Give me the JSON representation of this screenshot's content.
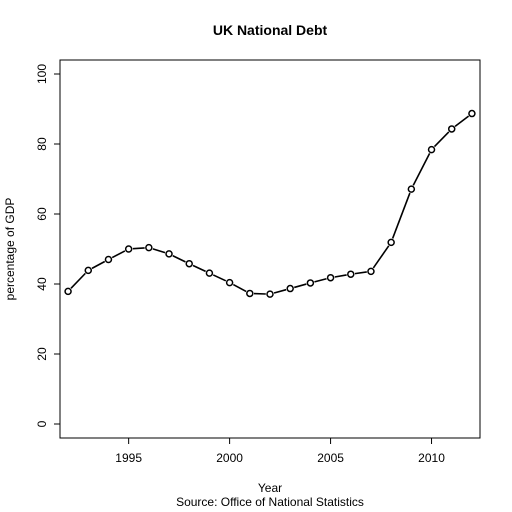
{
  "chart_data": {
    "type": "line",
    "title": "UK National Debt",
    "xlabel": "Year",
    "ylabel": "percentage of GDP",
    "caption": "Source: Office of National Statistics",
    "xlim": [
      1991.6,
      2012.4
    ],
    "ylim": [
      -4,
      104
    ],
    "x_ticks": [
      1995,
      2000,
      2005,
      2010
    ],
    "y_ticks": [
      0,
      20,
      40,
      60,
      80,
      100
    ],
    "grid": false,
    "legend": "none",
    "line_color": "#000000",
    "series": [
      {
        "x": [
          1992,
          1993,
          1994,
          1995,
          1996,
          1997,
          1998,
          1999,
          2000,
          2001,
          2002,
          2003,
          2004,
          2005,
          2006,
          2007,
          2008,
          2009,
          2010,
          2011,
          2012
        ],
        "y": [
          37.9,
          43.9,
          47.0,
          50.0,
          50.4,
          48.6,
          45.8,
          43.1,
          40.4,
          37.3,
          37.1,
          38.7,
          40.3,
          41.8,
          42.8,
          43.6,
          51.9,
          67.1,
          78.4,
          84.3,
          88.7
        ]
      }
    ]
  }
}
